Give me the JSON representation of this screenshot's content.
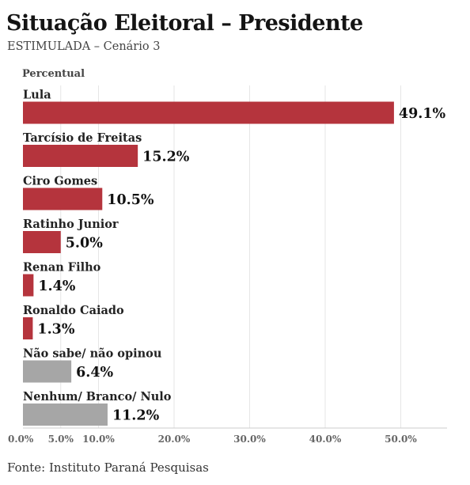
{
  "header": {
    "title": "Situação Eleitoral – Presidente",
    "subtitle": "ESTIMULADA – Cenário 3"
  },
  "footer": {
    "source": "Fonte: Instituto Paraná Pesquisas"
  },
  "colors": {
    "candidate": "#b5343d",
    "other": "#a6a6a6"
  },
  "chart_data": {
    "type": "bar",
    "orientation": "horizontal",
    "title": "Situação Eleitoral – Presidente",
    "subtitle": "ESTIMULADA – Cenário 3",
    "ylabel": "Percentual",
    "categories": [
      "Lula",
      "Tarcísio de Freitas",
      "Ciro Gomes",
      "Ratinho Junior",
      "Renan Filho",
      "Ronaldo Caiado",
      "Não sabe/ não opinou",
      "Nenhum/ Branco/ Nulo"
    ],
    "values": [
      49.1,
      15.2,
      10.5,
      5.0,
      1.4,
      1.3,
      6.4,
      11.2
    ],
    "value_labels": [
      "49.1%",
      "15.2%",
      "10.5%",
      "5.0%",
      "1.4%",
      "1.3%",
      "6.4%",
      "11.2%"
    ],
    "bar_groups": [
      "candidate",
      "candidate",
      "candidate",
      "candidate",
      "candidate",
      "candidate",
      "other",
      "other"
    ],
    "xlim": [
      0,
      55
    ],
    "xticks": [
      0,
      5,
      10,
      20,
      30,
      40,
      50
    ],
    "xtick_labels": [
      "0.0%",
      "5.0%",
      "10.0%",
      "20.0%",
      "30.0%",
      "40.0%",
      "50.0%"
    ],
    "grid": true
  }
}
